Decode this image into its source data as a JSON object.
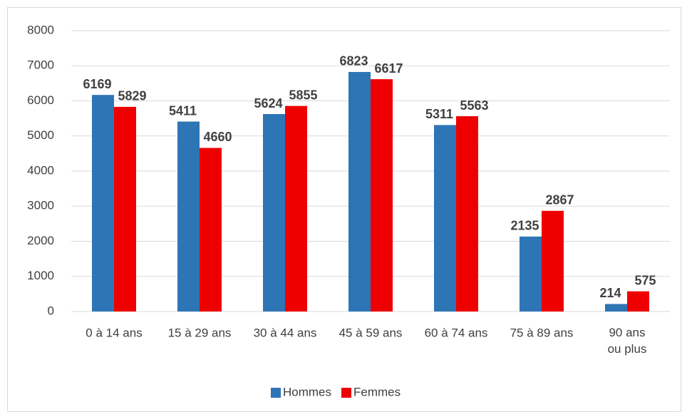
{
  "chart_data": {
    "type": "bar",
    "categories": [
      "0 à 14 ans",
      "15 à 29 ans",
      "30 à 44 ans",
      "45 à 59 ans",
      "60 à 74 ans",
      "75 à 89 ans",
      "90 ans ou plus"
    ],
    "series": [
      {
        "name": "Hommes",
        "color": "#2e75b6",
        "values": [
          6169,
          5411,
          5624,
          6823,
          5311,
          2135,
          214
        ]
      },
      {
        "name": "Femmes",
        "color": "#ee0000",
        "values": [
          5829,
          4660,
          5855,
          6617,
          5563,
          2867,
          575
        ]
      }
    ],
    "ylim": [
      0,
      8000
    ],
    "yticks": [
      0,
      1000,
      2000,
      3000,
      4000,
      5000,
      6000,
      7000,
      8000
    ],
    "grid": true,
    "legend": "bottom"
  }
}
